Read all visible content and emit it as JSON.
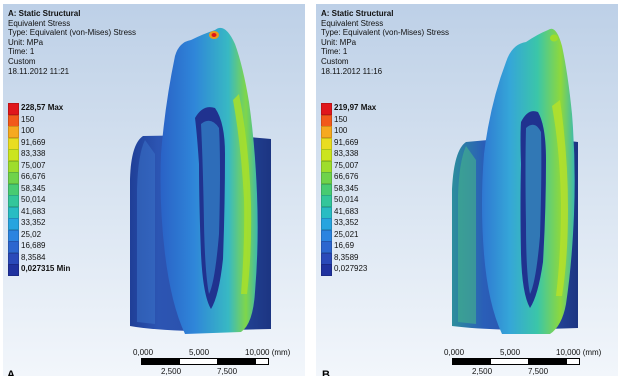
{
  "panels": [
    {
      "letter": "A",
      "header": {
        "title": "A: Static Structural",
        "line1": "Equivalent Stress",
        "line2": "Type: Equivalent (von-Mises) Stress",
        "line3": "Unit: MPa",
        "line4": "Time: 1",
        "line5": "Custom",
        "line6": "18.11.2012 11:21"
      },
      "legend": [
        {
          "label": "228,57 Max",
          "color": "#e0161b",
          "bold": true
        },
        {
          "label": "150",
          "color": "#f2591a"
        },
        {
          "label": "100",
          "color": "#f6a91f"
        },
        {
          "label": "91,669",
          "color": "#e9dd20"
        },
        {
          "label": "83,338",
          "color": "#cbe51f"
        },
        {
          "label": "75,007",
          "color": "#9edd2c"
        },
        {
          "label": "66,676",
          "color": "#6fd34a"
        },
        {
          "label": "58,345",
          "color": "#48cb72"
        },
        {
          "label": "50,014",
          "color": "#33c69b"
        },
        {
          "label": "41,683",
          "color": "#29bcc3"
        },
        {
          "label": "33,352",
          "color": "#27a4df"
        },
        {
          "label": "25,02",
          "color": "#2b84e0"
        },
        {
          "label": "16,689",
          "color": "#2c66cf"
        },
        {
          "label": "8,3584",
          "color": "#2a49b9"
        },
        {
          "label": "0,027315 Min",
          "color": "#20329f",
          "bold": true
        }
      ],
      "scale": {
        "top": [
          "0,000",
          "5,000",
          "10,000 (mm)"
        ],
        "bottom": [
          "2,500",
          "7,500"
        ]
      }
    },
    {
      "letter": "B",
      "header": {
        "title": "A: Static Structural",
        "line1": "Equivalent Stress",
        "line2": "Type: Equivalent (von-Mises) Stress",
        "line3": "Unit: MPa",
        "line4": "Time: 1",
        "line5": "Custom",
        "line6": "18.11.2012 11:16"
      },
      "legend": [
        {
          "label": "219,97 Max",
          "color": "#e0161b",
          "bold": true
        },
        {
          "label": "150",
          "color": "#f2591a"
        },
        {
          "label": "100",
          "color": "#f6a91f"
        },
        {
          "label": "91,669",
          "color": "#e9dd20"
        },
        {
          "label": "83,338",
          "color": "#cbe51f"
        },
        {
          "label": "75,007",
          "color": "#9edd2c"
        },
        {
          "label": "66,676",
          "color": "#6fd34a"
        },
        {
          "label": "58,345",
          "color": "#48cb72"
        },
        {
          "label": "50,014",
          "color": "#33c69b"
        },
        {
          "label": "41,683",
          "color": "#29bcc3"
        },
        {
          "label": "33,352",
          "color": "#27a4df"
        },
        {
          "label": "25,021",
          "color": "#2b84e0"
        },
        {
          "label": "16,69",
          "color": "#2c66cf"
        },
        {
          "label": "8,3589",
          "color": "#2a49b9"
        },
        {
          "label": "0,027923",
          "color": "#20329f"
        }
      ],
      "scale": {
        "top": [
          "0,000",
          "5,000",
          "10,000 (mm)"
        ],
        "bottom": [
          "2,500",
          "7,500"
        ]
      }
    }
  ]
}
